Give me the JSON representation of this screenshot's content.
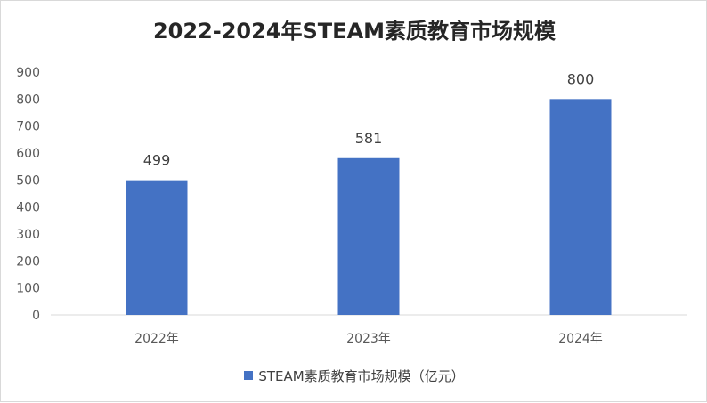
{
  "chart_data": {
    "type": "bar",
    "title": "2022-2024年STEAM素质教育市场规模",
    "categories": [
      "2022年",
      "2023年",
      "2024年"
    ],
    "series": [
      {
        "name": "STEAM素质教育市场规模（亿元）",
        "values": [
          499,
          581,
          800
        ]
      }
    ],
    "ylim": [
      0,
      900
    ],
    "yticks": [
      0,
      100,
      200,
      300,
      400,
      500,
      600,
      700,
      800,
      900
    ],
    "grid": false,
    "legend_position": "bottom",
    "bar_color": "#4472c4"
  }
}
